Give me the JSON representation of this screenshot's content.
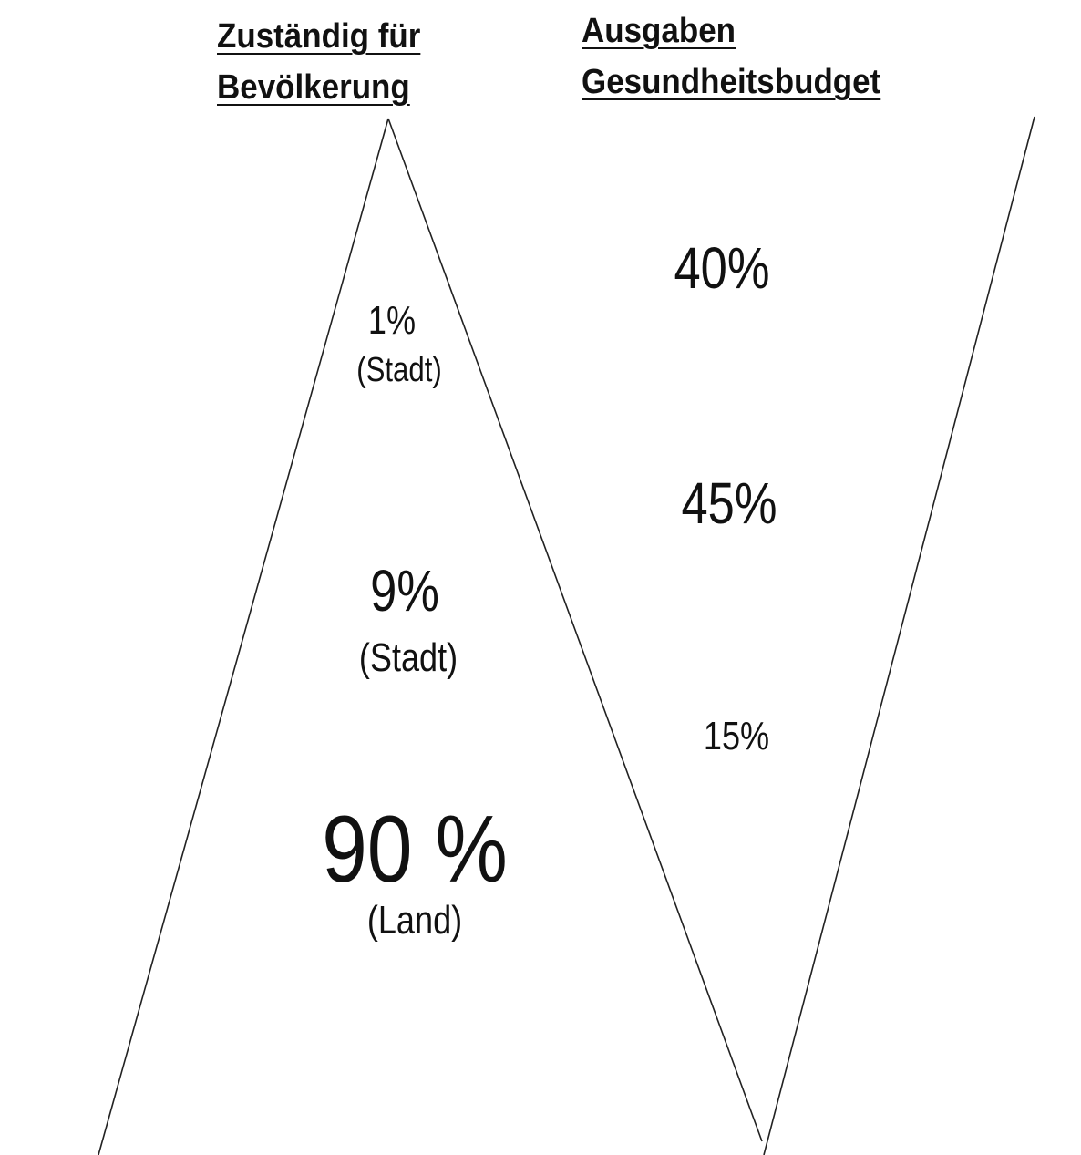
{
  "headers": {
    "population": [
      "Zuständig für",
      "Bevölkerung"
    ],
    "budget": [
      "Ausgaben",
      "Gesundheitsbudget"
    ]
  },
  "population_pyramid": {
    "top": {
      "percent": "1%",
      "label": "(Stadt)"
    },
    "middle": {
      "percent": "9%",
      "label": "(Stadt)"
    },
    "bottom": {
      "percent": "90 %",
      "label": "(Land)"
    }
  },
  "budget_triangle": {
    "top": "40%",
    "middle": "45%",
    "bottom": "15%"
  },
  "colors": {
    "line": "#222222",
    "text": "#111111",
    "background": "#ffffff"
  }
}
